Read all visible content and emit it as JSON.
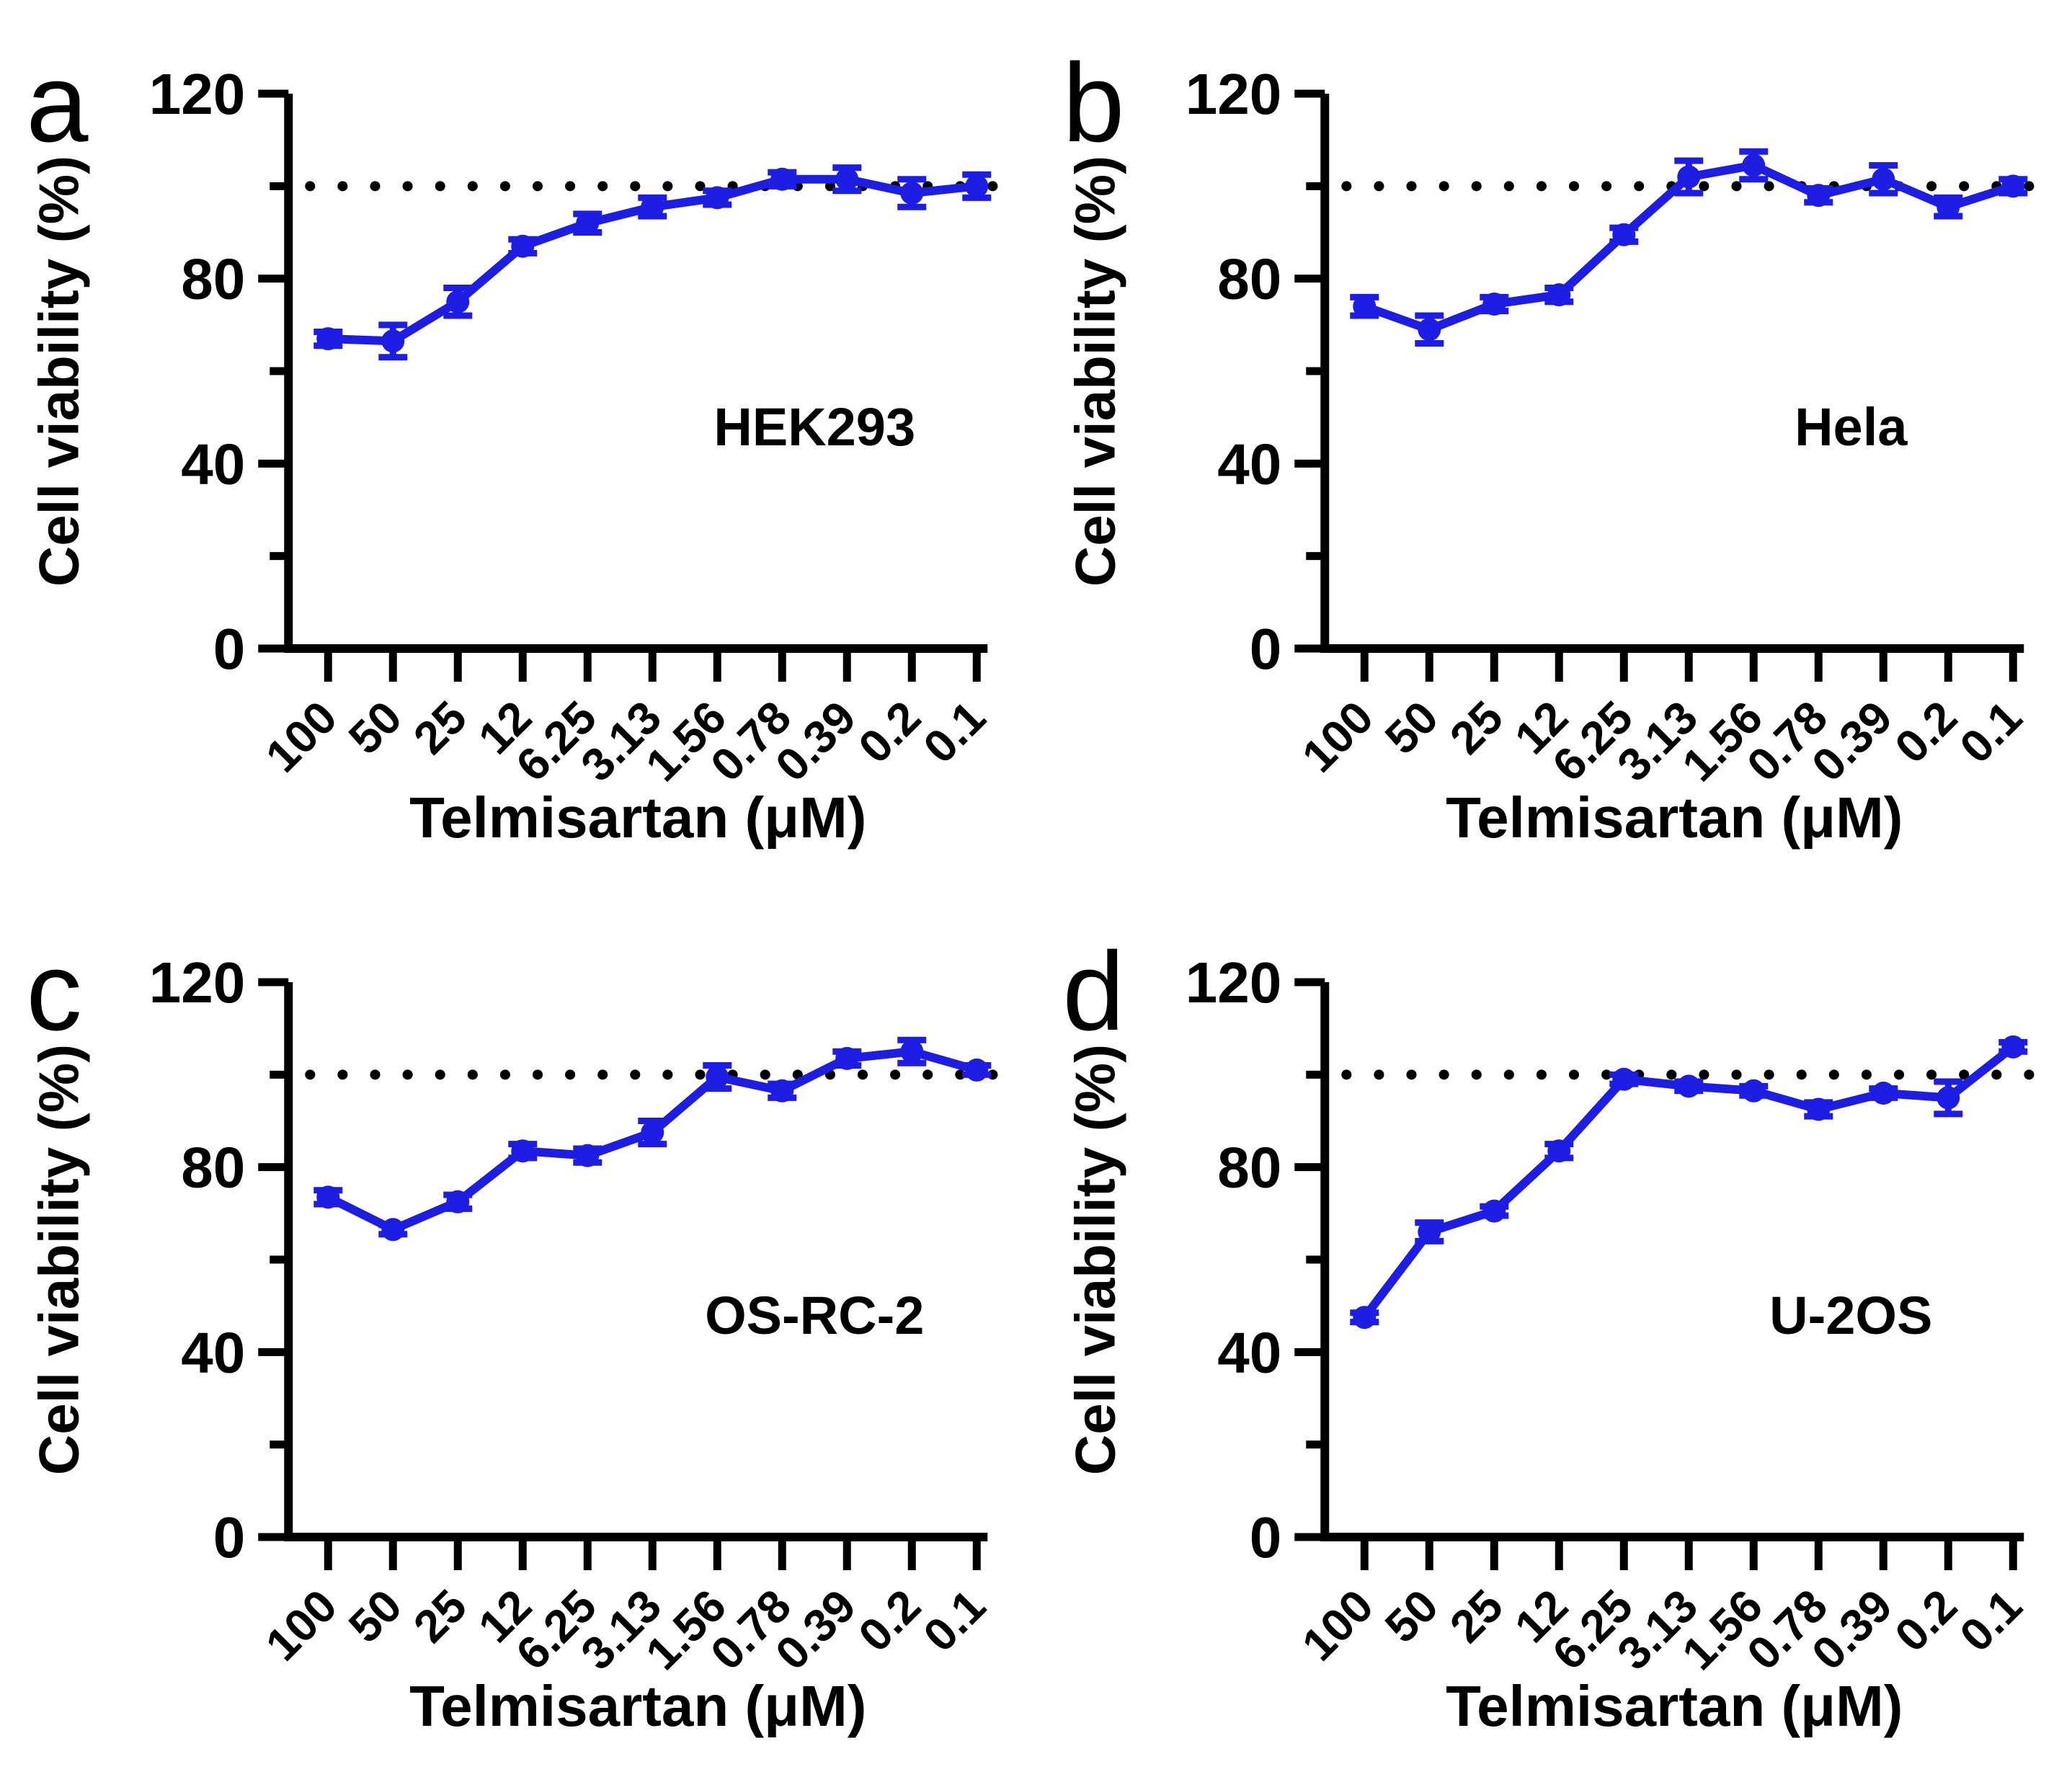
{
  "figure": {
    "series_color": "#1d1de4",
    "axis_color": "#000000",
    "reference_color": "#000000",
    "reference_value": 100
  },
  "chart_data": [
    {
      "type": "line",
      "letter": "a",
      "cell_line": "HEK293",
      "xlabel": "Telmisartan (μM)",
      "ylabel": "Cell viability (%)",
      "ylim": [
        0,
        120
      ],
      "yticks": [
        0,
        40,
        80,
        120
      ],
      "ytick_labels": [
        "0",
        "40",
        "80",
        "120"
      ],
      "categories": [
        "100",
        "50",
        "25",
        "12",
        "6.25",
        "3.13",
        "1.56",
        "0.78",
        "0.39",
        "0.2",
        "0.1"
      ],
      "values": [
        67,
        66.5,
        75,
        87,
        92,
        95.5,
        97.5,
        101.5,
        101.5,
        98.5,
        100
      ],
      "errors": [
        1.5,
        3.5,
        3,
        1.5,
        2,
        2,
        1.5,
        1.5,
        2.5,
        3,
        2.5
      ],
      "reference_line": 100
    },
    {
      "type": "line",
      "letter": "b",
      "cell_line": "Hela",
      "xlabel": "Telmisartan (μM)",
      "ylabel": "Cell viability (%)",
      "ylim": [
        0,
        120
      ],
      "yticks": [
        0,
        40,
        80,
        120
      ],
      "ytick_labels": [
        "0",
        "40",
        "80",
        "120"
      ],
      "categories": [
        "100",
        "50",
        "25",
        "12",
        "6.25",
        "3.13",
        "1.56",
        "0.78",
        "0.39",
        "0.2",
        "0.1"
      ],
      "values": [
        74,
        69,
        74.5,
        76.5,
        89.5,
        102,
        104.5,
        98,
        101.5,
        95.5,
        100
      ],
      "errors": [
        2,
        3,
        1.5,
        1.5,
        1.5,
        3.5,
        3,
        1.5,
        3,
        2,
        1.5
      ],
      "reference_line": 100
    },
    {
      "type": "line",
      "letter": "c",
      "cell_line": "OS-RC-2",
      "xlabel": "Telmisartan (μM)",
      "ylabel": "Cell viability (%)",
      "ylim": [
        0,
        120
      ],
      "yticks": [
        0,
        40,
        80,
        120
      ],
      "ytick_labels": [
        "0",
        "40",
        "80",
        "120"
      ],
      "categories": [
        "100",
        "50",
        "25",
        "12",
        "6.25",
        "3.13",
        "1.56",
        "0.78",
        "0.39",
        "0.2",
        "0.1"
      ],
      "values": [
        73.5,
        66.5,
        72.5,
        83.5,
        82.5,
        87.5,
        99.5,
        96.5,
        103.5,
        105,
        101
      ],
      "errors": [
        1.5,
        1,
        1.5,
        1.5,
        1.5,
        2.5,
        2.5,
        1.5,
        1.5,
        2.5,
        1
      ],
      "reference_line": 100
    },
    {
      "type": "line",
      "letter": "d",
      "cell_line": "U-2OS",
      "xlabel": "Telmisartan (μM)",
      "ylabel": "Cell viability (%)",
      "ylim": [
        0,
        120
      ],
      "yticks": [
        0,
        40,
        80,
        120
      ],
      "ytick_labels": [
        "0",
        "40",
        "80",
        "120"
      ],
      "categories": [
        "100",
        "50",
        "25",
        "12",
        "6.25",
        "3.13",
        "1.56",
        "0.78",
        "0.39",
        "0.2",
        "0.1"
      ],
      "values": [
        47.5,
        66,
        70.5,
        83.5,
        99,
        97.5,
        96.5,
        92.5,
        96,
        95,
        106
      ],
      "errors": [
        1,
        2,
        1,
        1.5,
        1,
        1,
        1,
        1.5,
        1,
        3.5,
        1
      ],
      "reference_line": 100
    }
  ]
}
